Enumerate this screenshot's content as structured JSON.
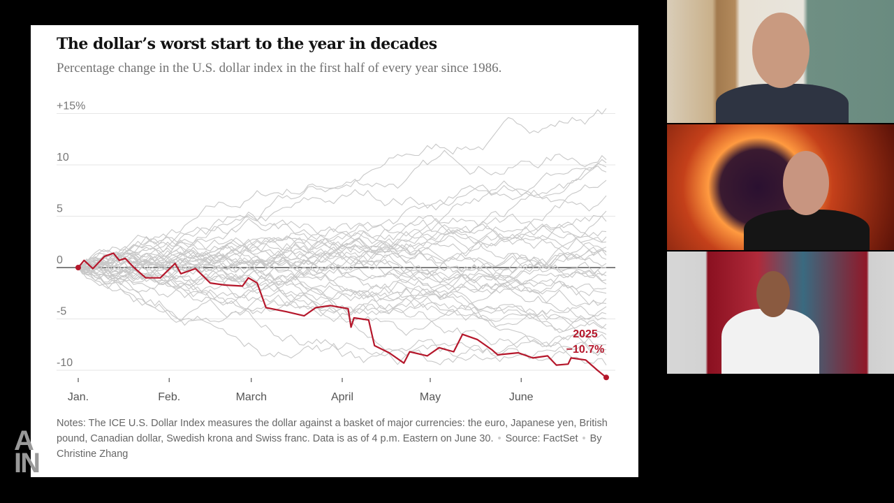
{
  "chart_data": {
    "type": "line",
    "title": "The dollar’s worst start to the year in decades",
    "subtitle": "Percentage change in the U.S. dollar index in the first half of every year since 1986.",
    "x_ticks": [
      {
        "label": "Jan.",
        "date": "2025-01-01"
      },
      {
        "label": "Feb.",
        "date": "2025-02-01"
      },
      {
        "label": "March",
        "date": "2025-03-01"
      },
      {
        "label": "April",
        "date": "2025-04-01"
      },
      {
        "label": "May",
        "date": "2025-05-01"
      },
      {
        "label": "June",
        "date": "2025-06-01"
      }
    ],
    "y_ticks": [
      {
        "value": 15,
        "label": "+15%"
      },
      {
        "value": 10,
        "label": "10"
      },
      {
        "value": 5,
        "label": "5"
      },
      {
        "value": 0,
        "label": "0"
      },
      {
        "value": -5,
        "label": "-5"
      },
      {
        "value": -10,
        "label": "-10"
      }
    ],
    "ylim": [
      -10.8,
      15.5
    ],
    "xlim": [
      "2025-01-01",
      "2025-06-30"
    ],
    "grid": true,
    "highlight": {
      "name": "2025",
      "end_label": "−10.7%",
      "color": "#b5172b",
      "points": [
        [
          "2025-01-01",
          0
        ],
        [
          "2025-01-03",
          0.7
        ],
        [
          "2025-01-06",
          -0.1
        ],
        [
          "2025-01-10",
          1.1
        ],
        [
          "2025-01-13",
          1.4
        ],
        [
          "2025-01-15",
          0.7
        ],
        [
          "2025-01-17",
          0.9
        ],
        [
          "2025-01-20",
          0
        ],
        [
          "2025-01-24",
          -1
        ],
        [
          "2025-01-29",
          -1
        ],
        [
          "2025-02-03",
          0.4
        ],
        [
          "2025-02-05",
          -0.6
        ],
        [
          "2025-02-10",
          -0.1
        ],
        [
          "2025-02-15",
          -1.5
        ],
        [
          "2025-02-20",
          -1.7
        ],
        [
          "2025-02-26",
          -1.8
        ],
        [
          "2025-02-28",
          -1
        ],
        [
          "2025-03-03",
          -1.5
        ],
        [
          "2025-03-06",
          -3.9
        ],
        [
          "2025-03-13",
          -4.3
        ],
        [
          "2025-03-19",
          -4.7
        ],
        [
          "2025-03-23",
          -3.9
        ],
        [
          "2025-03-28",
          -3.7
        ],
        [
          "2025-04-03",
          -4
        ],
        [
          "2025-04-04",
          -5.8
        ],
        [
          "2025-04-05",
          -4.9
        ],
        [
          "2025-04-10",
          -5.1
        ],
        [
          "2025-04-12",
          -7.6
        ],
        [
          "2025-04-17",
          -8.3
        ],
        [
          "2025-04-22",
          -9.3
        ],
        [
          "2025-04-24",
          -8.2
        ],
        [
          "2025-04-30",
          -8.6
        ],
        [
          "2025-05-04",
          -7.8
        ],
        [
          "2025-05-09",
          -8.2
        ],
        [
          "2025-05-12",
          -6.5
        ],
        [
          "2025-05-17",
          -7
        ],
        [
          "2025-05-22",
          -8
        ],
        [
          "2025-05-24",
          -8.5
        ],
        [
          "2025-05-31",
          -8.3
        ],
        [
          "2025-06-05",
          -8.8
        ],
        [
          "2025-06-10",
          -8.6
        ],
        [
          "2025-06-13",
          -9.5
        ],
        [
          "2025-06-17",
          -9.4
        ],
        [
          "2025-06-18",
          -8.8
        ],
        [
          "2025-06-23",
          -9
        ],
        [
          "2025-06-27",
          -10
        ],
        [
          "2025-06-30",
          -10.7
        ]
      ]
    },
    "background_series_color": "#c8c8c8",
    "background_series_final_values": [
      15.5,
      10.5,
      10.2,
      9.8,
      9.3,
      8.5,
      7,
      5.5,
      4.5,
      3.5,
      3,
      2.5,
      2,
      1.6,
      1.2,
      0.8,
      0.4,
      0,
      -0.4,
      -0.8,
      -1.2,
      -1.6,
      -2,
      -2.5,
      -3,
      -3.5,
      -4.5,
      -5,
      -5.5,
      -6,
      -6.5,
      -7,
      -7.5,
      -8,
      -8.5,
      -9.5,
      -3.8,
      1.5
    ]
  },
  "notes": {
    "text": "Notes: The ICE U.S. Dollar Index measures the dollar against a basket of major currencies: the euro, Japanese yen, British pound, Canadian dollar, Swedish krona and Swiss franc. Data is as of 4 p.m. Eastern on June 30.",
    "source": "Source: FactSet",
    "byline": "By Christine Zhang"
  },
  "watermark": "ALL IN",
  "participants": [
    "participant-1",
    "participant-2",
    "participant-3"
  ]
}
